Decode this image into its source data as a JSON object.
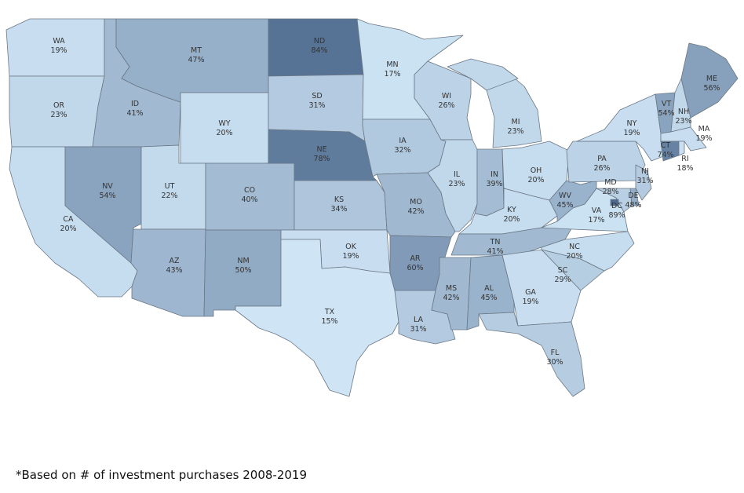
{
  "chart_data": {
    "type": "choropleth",
    "categories": [
      "WA",
      "OR",
      "CA",
      "ID",
      "NV",
      "MT",
      "WY",
      "UT",
      "AZ",
      "CO",
      "NM",
      "ND",
      "SD",
      "NE",
      "KS",
      "OK",
      "TX",
      "MN",
      "IA",
      "MO",
      "AR",
      "LA",
      "WI",
      "IL",
      "MI",
      "IN",
      "OH",
      "KY",
      "TN",
      "MS",
      "AL",
      "GA",
      "FL",
      "SC",
      "NC",
      "VA",
      "WV",
      "PA",
      "NY",
      "VT",
      "NH",
      "ME",
      "MA",
      "CT",
      "RI",
      "NJ",
      "DE",
      "MD",
      "DC"
    ],
    "values": [
      19,
      23,
      20,
      41,
      54,
      47,
      20,
      22,
      43,
      40,
      50,
      84,
      31,
      78,
      34,
      19,
      15,
      17,
      32,
      42,
      60,
      31,
      26,
      23,
      23,
      39,
      20,
      20,
      41,
      42,
      45,
      19,
      30,
      29,
      20,
      17,
      45,
      26,
      19,
      54,
      23,
      56,
      19,
      74,
      18,
      31,
      48,
      28,
      89
    ],
    "value_labels": [
      "19%",
      "23%",
      "20%",
      "41%",
      "54%",
      "47%",
      "20%",
      "22%",
      "43%",
      "40%",
      "50%",
      "84%",
      "31%",
      "78%",
      "34%",
      "19%",
      "15%",
      "17%",
      "32%",
      "42%",
      "60%",
      "31%",
      "26%",
      "23%",
      "23%",
      "39%",
      "20%",
      "20%",
      "41%",
      "42%",
      "45%",
      "19%",
      "30%",
      "29%",
      "20%",
      "17%",
      "45%",
      "26%",
      "19%",
      "54%",
      "23%",
      "56%",
      "19%",
      "74%",
      "18%",
      "31%",
      "48%",
      "28%",
      "89%"
    ],
    "colors": [
      "#cfe5f6",
      "#4d6a8e"
    ],
    "footnote": "*Based on # of investment purchases 2008-2019"
  }
}
